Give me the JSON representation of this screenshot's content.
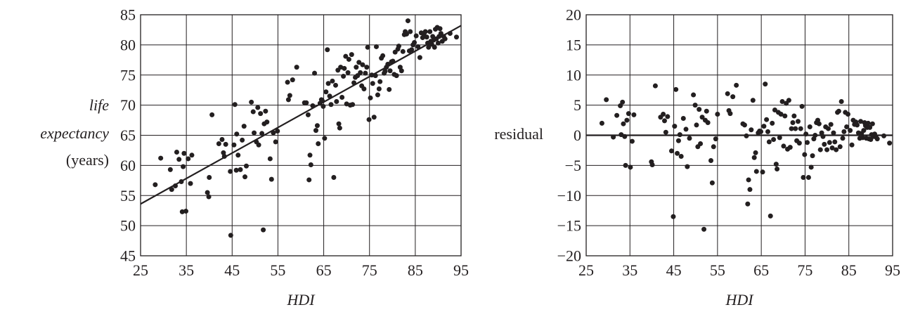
{
  "chart_data": [
    {
      "type": "scatter",
      "title": "",
      "xlabel": "HDI",
      "ylabel_lines": [
        "life",
        "expectancy",
        "(years)"
      ],
      "xlim": [
        25,
        95
      ],
      "ylim": [
        45,
        85
      ],
      "xticks": [
        25,
        35,
        45,
        55,
        65,
        75,
        85,
        95
      ],
      "yticks": [
        45,
        50,
        55,
        60,
        65,
        70,
        75,
        80,
        85
      ],
      "grid": true,
      "fit_line": {
        "x": [
          25,
          95
        ],
        "y": [
          53.6,
          83.2
        ]
      },
      "points": [
        [
          28.2,
          56.8
        ],
        [
          29.4,
          61.2
        ],
        [
          31.5,
          59.3
        ],
        [
          31.8,
          56.0
        ],
        [
          32.6,
          56.6
        ],
        [
          32.9,
          62.2
        ],
        [
          33.4,
          61.0
        ],
        [
          33.9,
          57.3
        ],
        [
          34.1,
          52.3
        ],
        [
          34.3,
          59.8
        ],
        [
          34.5,
          62.0
        ],
        [
          34.9,
          52.4
        ],
        [
          35.4,
          61.1
        ],
        [
          35.9,
          57.0
        ],
        [
          36.2,
          61.7
        ],
        [
          39.6,
          55.5
        ],
        [
          39.9,
          54.8
        ],
        [
          40.0,
          58.0
        ],
        [
          40.6,
          68.4
        ],
        [
          42.1,
          63.6
        ],
        [
          42.8,
          64.3
        ],
        [
          43.1,
          62.1
        ],
        [
          43.3,
          61.5
        ],
        [
          43.6,
          63.5
        ],
        [
          44.6,
          59.0
        ],
        [
          44.7,
          48.4
        ],
        [
          45.4,
          63.4
        ],
        [
          45.6,
          70.1
        ],
        [
          45.9,
          59.2
        ],
        [
          46.0,
          65.2
        ],
        [
          46.3,
          61.7
        ],
        [
          46.8,
          59.3
        ],
        [
          47.2,
          64.2
        ],
        [
          47.6,
          66.5
        ],
        [
          47.8,
          58.1
        ],
        [
          48.1,
          59.9
        ],
        [
          49.2,
          70.5
        ],
        [
          49.6,
          68.9
        ],
        [
          49.8,
          65.4
        ],
        [
          50.3,
          63.9
        ],
        [
          50.6,
          69.6
        ],
        [
          50.8,
          63.4
        ],
        [
          51.2,
          68.6
        ],
        [
          51.5,
          65.3
        ],
        [
          51.8,
          49.3
        ],
        [
          52.0,
          66.9
        ],
        [
          52.3,
          69.0
        ],
        [
          52.6,
          67.2
        ],
        [
          53.3,
          61.1
        ],
        [
          53.6,
          57.7
        ],
        [
          54.0,
          65.4
        ],
        [
          54.5,
          63.9
        ],
        [
          54.9,
          65.7
        ],
        [
          57.1,
          73.8
        ],
        [
          57.3,
          70.9
        ],
        [
          57.6,
          71.6
        ],
        [
          58.2,
          74.2
        ],
        [
          59.1,
          76.3
        ],
        [
          60.8,
          70.4
        ],
        [
          61.2,
          70.4
        ],
        [
          61.6,
          68.4
        ],
        [
          61.8,
          57.6
        ],
        [
          62.0,
          61.7
        ],
        [
          62.2,
          60.1
        ],
        [
          62.6,
          69.9
        ],
        [
          63.0,
          75.3
        ],
        [
          63.3,
          65.8
        ],
        [
          63.6,
          66.6
        ],
        [
          63.8,
          63.6
        ],
        [
          64.2,
          70.3
        ],
        [
          64.5,
          70.9
        ],
        [
          64.7,
          70.7
        ],
        [
          64.9,
          69.8
        ],
        [
          65.2,
          64.5
        ],
        [
          65.5,
          72.2
        ],
        [
          65.8,
          79.2
        ],
        [
          66.0,
          73.6
        ],
        [
          66.3,
          71.5
        ],
        [
          66.6,
          70.1
        ],
        [
          66.9,
          74.0
        ],
        [
          67.2,
          58.0
        ],
        [
          67.6,
          73.3
        ],
        [
          67.8,
          70.6
        ],
        [
          68.1,
          75.8
        ],
        [
          68.3,
          66.9
        ],
        [
          68.5,
          66.2
        ],
        [
          68.7,
          76.3
        ],
        [
          69.0,
          71.3
        ],
        [
          69.3,
          74.8
        ],
        [
          69.5,
          76.1
        ],
        [
          69.8,
          78.1
        ],
        [
          70.0,
          70.2
        ],
        [
          70.3,
          75.4
        ],
        [
          70.5,
          77.6
        ],
        [
          70.8,
          70.0
        ],
        [
          71.1,
          78.4
        ],
        [
          71.3,
          70.1
        ],
        [
          71.6,
          73.7
        ],
        [
          71.9,
          74.6
        ],
        [
          72.1,
          76.3
        ],
        [
          72.4,
          74.9
        ],
        [
          72.7,
          77.1
        ],
        [
          73.0,
          75.4
        ],
        [
          73.3,
          73.2
        ],
        [
          73.5,
          76.7
        ],
        [
          73.8,
          72.7
        ],
        [
          74.1,
          75.3
        ],
        [
          74.4,
          76.3
        ],
        [
          74.6,
          79.6
        ],
        [
          74.9,
          67.6
        ],
        [
          75.2,
          71.2
        ],
        [
          75.5,
          75.0
        ],
        [
          75.7,
          73.6
        ],
        [
          76.0,
          68.0
        ],
        [
          76.3,
          74.9
        ],
        [
          76.5,
          79.7
        ],
        [
          76.8,
          71.7
        ],
        [
          77.1,
          72.7
        ],
        [
          77.3,
          73.9
        ],
        [
          77.6,
          77.8
        ],
        [
          77.9,
          78.2
        ],
        [
          78.2,
          75.3
        ],
        [
          78.4,
          75.6
        ],
        [
          78.7,
          76.3
        ],
        [
          79.0,
          76.8
        ],
        [
          79.3,
          72.6
        ],
        [
          79.5,
          75.7
        ],
        [
          79.8,
          77.2
        ],
        [
          80.1,
          77.3
        ],
        [
          80.4,
          75.1
        ],
        [
          80.6,
          78.8
        ],
        [
          80.9,
          74.9
        ],
        [
          81.2,
          79.3
        ],
        [
          81.4,
          79.8
        ],
        [
          81.7,
          76.3
        ],
        [
          82.0,
          75.7
        ],
        [
          82.3,
          78.9
        ],
        [
          82.6,
          81.7
        ],
        [
          82.8,
          82.2
        ],
        [
          83.1,
          81.8
        ],
        [
          83.4,
          84.0
        ],
        [
          83.7,
          79.0
        ],
        [
          83.9,
          82.2
        ],
        [
          84.2,
          79.2
        ],
        [
          84.5,
          80.0
        ],
        [
          84.8,
          80.4
        ],
        [
          85.2,
          81.5
        ],
        [
          85.6,
          79.7
        ],
        [
          86.0,
          77.9
        ],
        [
          86.3,
          82.0
        ],
        [
          86.6,
          81.2
        ],
        [
          86.9,
          81.7
        ],
        [
          87.2,
          82.2
        ],
        [
          87.5,
          81.3
        ],
        [
          87.7,
          80.3
        ],
        [
          87.9,
          79.6
        ],
        [
          88.2,
          82.2
        ],
        [
          88.4,
          80.6
        ],
        [
          88.6,
          80.1
        ],
        [
          88.8,
          81.4
        ],
        [
          89.0,
          80.8
        ],
        [
          89.2,
          79.6
        ],
        [
          89.4,
          82.6
        ],
        [
          89.6,
          81.0
        ],
        [
          89.8,
          82.9
        ],
        [
          90.0,
          80.3
        ],
        [
          90.2,
          81.4
        ],
        [
          90.4,
          82.7
        ],
        [
          90.6,
          81.9
        ],
        [
          90.9,
          80.6
        ],
        [
          91.2,
          81.4
        ],
        [
          91.5,
          81.0
        ],
        [
          92.6,
          81.9
        ],
        [
          94.0,
          81.3
        ]
      ]
    },
    {
      "type": "scatter",
      "title": "",
      "xlabel": "HDI",
      "ylabel": "residual",
      "xlim": [
        25,
        95
      ],
      "ylim": [
        -20,
        20
      ],
      "xticks": [
        25,
        35,
        45,
        55,
        65,
        75,
        85,
        95
      ],
      "yticks": [
        -20,
        -15,
        -10,
        -5,
        0,
        5,
        10,
        15,
        20
      ],
      "yticklabels": [
        "−20",
        "−15",
        "−10",
        "−5",
        "0",
        "5",
        "10",
        "15",
        "20"
      ],
      "grid": true,
      "zero_line": true,
      "points": [
        [
          28.6,
          2.0
        ],
        [
          29.6,
          5.9
        ],
        [
          31.2,
          -0.3
        ],
        [
          32.0,
          3.3
        ],
        [
          32.8,
          4.9
        ],
        [
          33.0,
          0.1
        ],
        [
          33.3,
          5.5
        ],
        [
          33.5,
          1.9
        ],
        [
          33.8,
          -0.2
        ],
        [
          34.0,
          -5.0
        ],
        [
          34.3,
          2.5
        ],
        [
          34.7,
          3.6
        ],
        [
          35.1,
          -5.3
        ],
        [
          35.5,
          -1.0
        ],
        [
          35.9,
          3.4
        ],
        [
          39.9,
          -4.4
        ],
        [
          40.1,
          -4.9
        ],
        [
          40.8,
          8.2
        ],
        [
          42.0,
          3.0
        ],
        [
          42.6,
          3.5
        ],
        [
          42.9,
          2.4
        ],
        [
          43.2,
          0.5
        ],
        [
          43.6,
          3.1
        ],
        [
          44.5,
          -2.6
        ],
        [
          44.9,
          -13.5
        ],
        [
          45.2,
          1.5
        ],
        [
          45.5,
          7.6
        ],
        [
          45.8,
          -3.0
        ],
        [
          46.1,
          -0.9
        ],
        [
          46.4,
          0.1
        ],
        [
          46.7,
          -3.5
        ],
        [
          47.2,
          2.8
        ],
        [
          47.8,
          1.0
        ],
        [
          48.1,
          -5.2
        ],
        [
          48.6,
          -0.5
        ],
        [
          49.5,
          6.7
        ],
        [
          49.9,
          5.0
        ],
        [
          50.2,
          1.7
        ],
        [
          50.5,
          -1.9
        ],
        [
          50.8,
          4.3
        ],
        [
          51.1,
          -1.4
        ],
        [
          51.5,
          3.0
        ],
        [
          51.9,
          -15.6
        ],
        [
          52.2,
          2.5
        ],
        [
          52.5,
          4.0
        ],
        [
          52.8,
          2.1
        ],
        [
          53.5,
          -4.2
        ],
        [
          53.8,
          -7.9
        ],
        [
          54.1,
          -1.9
        ],
        [
          54.6,
          -0.6
        ],
        [
          55.0,
          3.5
        ],
        [
          57.3,
          6.9
        ],
        [
          57.6,
          4.1
        ],
        [
          57.9,
          3.6
        ],
        [
          58.5,
          6.4
        ],
        [
          59.3,
          8.3
        ],
        [
          60.8,
          1.9
        ],
        [
          61.2,
          1.7
        ],
        [
          61.6,
          -0.1
        ],
        [
          61.9,
          -11.4
        ],
        [
          62.1,
          -7.4
        ],
        [
          62.4,
          -9.0
        ],
        [
          62.7,
          0.9
        ],
        [
          63.1,
          5.8
        ],
        [
          63.4,
          -3.7
        ],
        [
          63.7,
          -2.9
        ],
        [
          63.9,
          -6.0
        ],
        [
          64.3,
          0.4
        ],
        [
          64.6,
          0.7
        ],
        [
          64.9,
          0.6
        ],
        [
          65.3,
          -6.1
        ],
        [
          65.6,
          1.5
        ],
        [
          65.9,
          8.5
        ],
        [
          66.2,
          2.6
        ],
        [
          66.5,
          0.6
        ],
        [
          66.8,
          -1.1
        ],
        [
          67.1,
          -13.4
        ],
        [
          67.5,
          2.0
        ],
        [
          67.8,
          -0.7
        ],
        [
          68.1,
          4.2
        ],
        [
          68.4,
          -4.8
        ],
        [
          68.6,
          -5.6
        ],
        [
          68.9,
          3.8
        ],
        [
          69.2,
          -0.4
        ],
        [
          69.5,
          3.5
        ],
        [
          69.8,
          5.6
        ],
        [
          70.1,
          -1.8
        ],
        [
          70.4,
          3.2
        ],
        [
          70.7,
          5.3
        ],
        [
          71.0,
          -2.3
        ],
        [
          71.3,
          5.8
        ],
        [
          71.6,
          -2.0
        ],
        [
          71.9,
          1.1
        ],
        [
          72.2,
          2.1
        ],
        [
          72.5,
          3.2
        ],
        [
          72.8,
          1.1
        ],
        [
          73.1,
          -0.9
        ],
        [
          73.4,
          2.3
        ],
        [
          73.7,
          -1.3
        ],
        [
          74.0,
          1.1
        ],
        [
          74.3,
          4.8
        ],
        [
          74.6,
          -7.0
        ],
        [
          74.9,
          -3.2
        ],
        [
          75.2,
          0.2
        ],
        [
          75.5,
          -1.2
        ],
        [
          75.8,
          -7.0
        ],
        [
          76.1,
          1.4
        ],
        [
          76.4,
          -5.3
        ],
        [
          76.7,
          -3.4
        ],
        [
          77.0,
          -0.6
        ],
        [
          77.3,
          0.0
        ],
        [
          77.6,
          2.1
        ],
        [
          77.9,
          2.5
        ],
        [
          78.2,
          1.9
        ],
        [
          78.5,
          -2.4
        ],
        [
          78.8,
          0.4
        ],
        [
          79.1,
          -0.2
        ],
        [
          79.4,
          -1.5
        ],
        [
          79.7,
          1.4
        ],
        [
          80.0,
          -2.4
        ],
        [
          80.3,
          1.1
        ],
        [
          80.6,
          -1.2
        ],
        [
          80.9,
          1.8
        ],
        [
          81.2,
          -2.1
        ],
        [
          81.5,
          0.4
        ],
        [
          81.8,
          -1.1
        ],
        [
          82.1,
          -2.4
        ],
        [
          82.4,
          3.8
        ],
        [
          82.7,
          4.0
        ],
        [
          83.0,
          -1.9
        ],
        [
          83.3,
          5.6
        ],
        [
          83.6,
          -0.5
        ],
        [
          83.9,
          0.6
        ],
        [
          84.2,
          3.8
        ],
        [
          84.5,
          1.4
        ],
        [
          84.8,
          3.5
        ],
        [
          85.3,
          0.8
        ],
        [
          85.7,
          -1.6
        ],
        [
          86.0,
          2.5
        ],
        [
          86.3,
          1.8
        ],
        [
          86.6,
          2.2
        ],
        [
          86.9,
          1.7
        ],
        [
          87.2,
          0.4
        ],
        [
          87.5,
          -0.5
        ],
        [
          87.7,
          2.3
        ],
        [
          87.9,
          0.3
        ],
        [
          88.2,
          -0.4
        ],
        [
          88.4,
          0.8
        ],
        [
          88.6,
          2.1
        ],
        [
          88.8,
          1.6
        ],
        [
          89.0,
          -0.5
        ],
        [
          89.2,
          1.3
        ],
        [
          89.4,
          2.0
        ],
        [
          89.6,
          -0.6
        ],
        [
          89.8,
          1.3
        ],
        [
          90.0,
          -0.7
        ],
        [
          90.2,
          0.1
        ],
        [
          90.4,
          1.9
        ],
        [
          90.6,
          -0.2
        ],
        [
          90.9,
          0.2
        ],
        [
          91.2,
          -0.3
        ],
        [
          91.5,
          -0.6
        ],
        [
          93.0,
          -0.1
        ],
        [
          94.3,
          -1.3
        ]
      ]
    }
  ]
}
